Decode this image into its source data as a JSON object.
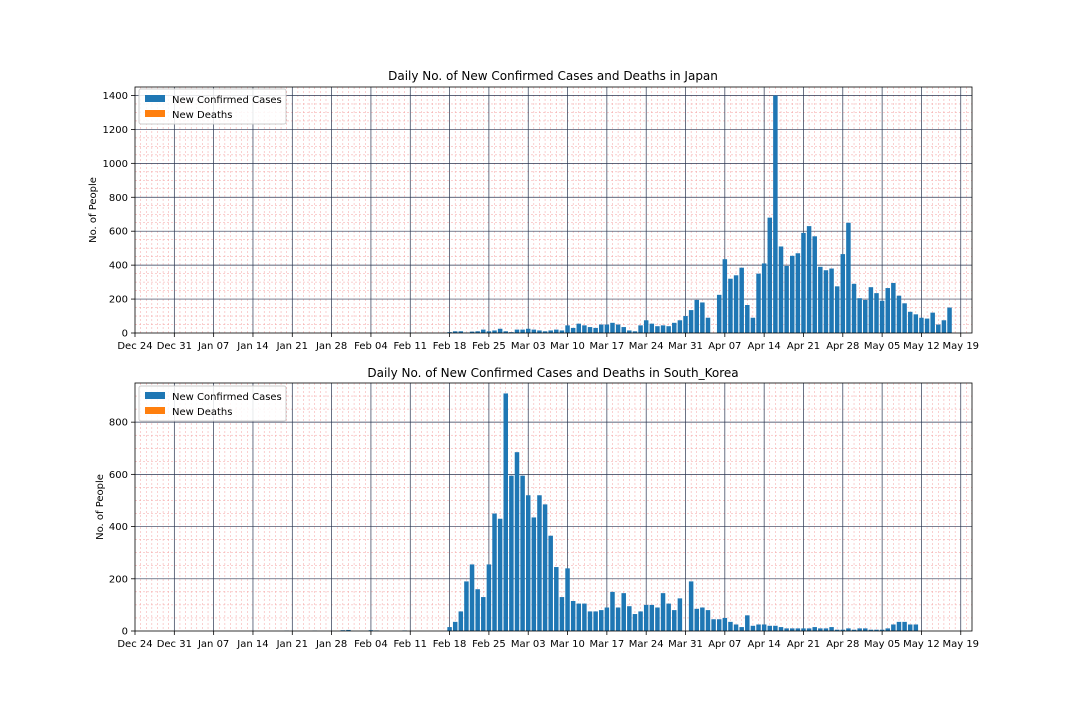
{
  "colors": {
    "cases": "#1f77b4",
    "deaths": "#ff7f0e",
    "major_grid": "#2a3550",
    "minor_grid": "#f4a0a0"
  },
  "chart_data": [
    {
      "type": "bar",
      "title": "Daily No. of New Confirmed Cases and Deaths in Japan",
      "xlabel": "",
      "ylabel": "No. of People",
      "ylim": [
        0,
        1450
      ],
      "yticks": [
        0,
        200,
        400,
        600,
        800,
        1000,
        1200,
        1400
      ],
      "x_axis": {
        "type": "date",
        "start": "2019-12-24",
        "end": "2020-05-21",
        "tick_labels": [
          "Dec 24",
          "Dec 31",
          "Jan 07",
          "Jan 14",
          "Jan 21",
          "Jan 28",
          "Feb 04",
          "Feb 11",
          "Feb 18",
          "Feb 25",
          "Mar 03",
          "Mar 10",
          "Mar 17",
          "Mar 24",
          "Mar 31",
          "Apr 07",
          "Apr 14",
          "Apr 21",
          "Apr 28",
          "May 05",
          "May 12",
          "May 19"
        ]
      },
      "grid": "major and minor",
      "legend": {
        "position": "upper-left",
        "entries": [
          "New Confirmed Cases",
          "New Deaths"
        ]
      },
      "series": [
        {
          "name": "New Confirmed Cases",
          "start_date": "2020-01-15",
          "values": [
            0,
            0,
            0,
            0,
            0,
            0,
            0,
            0,
            0,
            0,
            0,
            0,
            0,
            0,
            0,
            0,
            0,
            0,
            0,
            0,
            0,
            0,
            0,
            0,
            0,
            0,
            0,
            0,
            0,
            0,
            0,
            0,
            0,
            0,
            5,
            10,
            10,
            3,
            8,
            10,
            20,
            10,
            15,
            25,
            10,
            5,
            20,
            20,
            25,
            20,
            15,
            10,
            15,
            20,
            15,
            45,
            30,
            55,
            45,
            35,
            30,
            50,
            50,
            60,
            50,
            35,
            15,
            10,
            45,
            75,
            55,
            40,
            45,
            40,
            60,
            75,
            100,
            135,
            195,
            180,
            90,
            0,
            225,
            435,
            320,
            340,
            385,
            165,
            90,
            350,
            410,
            680,
            1400,
            510,
            395,
            455,
            470,
            590,
            630,
            570,
            390,
            370,
            380,
            275,
            465,
            650,
            290,
            205,
            195,
            270,
            235,
            190,
            265,
            295,
            220,
            175,
            125,
            110,
            90,
            85,
            120,
            50,
            75,
            150
          ]
        },
        {
          "name": "New Deaths",
          "start_date": "2020-01-15",
          "values": [
            0,
            0,
            0,
            0,
            0,
            0,
            0,
            0,
            0,
            0,
            0,
            0,
            0,
            0,
            0,
            0,
            0,
            0,
            0,
            0,
            0,
            0,
            0,
            0,
            0,
            0,
            0,
            0,
            0,
            0,
            0,
            0,
            0,
            0,
            0,
            0,
            0,
            0,
            0,
            0,
            0,
            0,
            0,
            0,
            0,
            0,
            0,
            0,
            0,
            0,
            0,
            0,
            0,
            0,
            0,
            0,
            0,
            0,
            0,
            0,
            0,
            0,
            0,
            0,
            0,
            0,
            0,
            0,
            0,
            0,
            0,
            0,
            0,
            0,
            0,
            0,
            0,
            0,
            0,
            0,
            0,
            0,
            0,
            0,
            0,
            0,
            0,
            0,
            0,
            0,
            0,
            0,
            0,
            0,
            0,
            0,
            0,
            0,
            0,
            0,
            0,
            0,
            0,
            0,
            0,
            0,
            0,
            0,
            0,
            0,
            0,
            0,
            0,
            0,
            0,
            0,
            0,
            0,
            0,
            0,
            0,
            0,
            0,
            0
          ]
        }
      ]
    },
    {
      "type": "bar",
      "title": "Daily No. of New Confirmed Cases and Deaths in South_Korea",
      "xlabel": "",
      "ylabel": "No. of People",
      "ylim": [
        0,
        950
      ],
      "yticks": [
        0,
        200,
        400,
        600,
        800
      ],
      "x_axis": {
        "type": "date",
        "start": "2019-12-24",
        "end": "2020-05-21",
        "tick_labels": [
          "Dec 24",
          "Dec 31",
          "Jan 07",
          "Jan 14",
          "Jan 21",
          "Jan 28",
          "Feb 04",
          "Feb 11",
          "Feb 18",
          "Feb 25",
          "Mar 03",
          "Mar 10",
          "Mar 17",
          "Mar 24",
          "Mar 31",
          "Apr 07",
          "Apr 14",
          "Apr 21",
          "Apr 28",
          "May 05",
          "May 12",
          "May 19"
        ]
      },
      "grid": "major and minor",
      "legend": {
        "position": "upper-left",
        "entries": [
          "New Confirmed Cases",
          "New Deaths"
        ]
      },
      "series": [
        {
          "name": "New Confirmed Cases",
          "start_date": "2020-01-20",
          "values": [
            1,
            0,
            0,
            0,
            0,
            1,
            0,
            0,
            0,
            0,
            3,
            4,
            0,
            0,
            0,
            3,
            2,
            0,
            0,
            0,
            0,
            2,
            0,
            0,
            0,
            0,
            0,
            0,
            0,
            15,
            35,
            75,
            190,
            255,
            160,
            130,
            255,
            450,
            430,
            910,
            595,
            685,
            595,
            520,
            435,
            520,
            485,
            365,
            245,
            130,
            240,
            115,
            105,
            105,
            75,
            75,
            80,
            90,
            150,
            90,
            145,
            95,
            65,
            75,
            100,
            100,
            90,
            145,
            105,
            80,
            125,
            0,
            190,
            85,
            90,
            80,
            45,
            45,
            50,
            35,
            25,
            15,
            60,
            20,
            25,
            25,
            20,
            20,
            15,
            10,
            10,
            10,
            10,
            10,
            15,
            10,
            10,
            15,
            5,
            5,
            10,
            5,
            10,
            10,
            5,
            5,
            5,
            10,
            25,
            35,
            35,
            25,
            25
          ]
        },
        {
          "name": "New Deaths",
          "start_date": "2020-01-20",
          "values": [
            0,
            0,
            0,
            0,
            0,
            0,
            0,
            0,
            0,
            0,
            0,
            0,
            0,
            0,
            0,
            0,
            0,
            0,
            0,
            0,
            0,
            0,
            0,
            0,
            0,
            0,
            0,
            0,
            0,
            0,
            0,
            0,
            0,
            0,
            0,
            0,
            0,
            0,
            0,
            0,
            0,
            0,
            0,
            0,
            0,
            0,
            0,
            0,
            0,
            0,
            0,
            0,
            0,
            0,
            0,
            0,
            0,
            0,
            0,
            0,
            0,
            0,
            0,
            0,
            0,
            0,
            0,
            0,
            0,
            0,
            0,
            0,
            0,
            0,
            0,
            0,
            0,
            0,
            0,
            0,
            0,
            0,
            0,
            0,
            0,
            0,
            0,
            0,
            0,
            0,
            0,
            0,
            0,
            0,
            0,
            0,
            0,
            0,
            0,
            0,
            0,
            0,
            0,
            0,
            0,
            0,
            0,
            0,
            0,
            0,
            0,
            0,
            0
          ]
        }
      ]
    }
  ]
}
